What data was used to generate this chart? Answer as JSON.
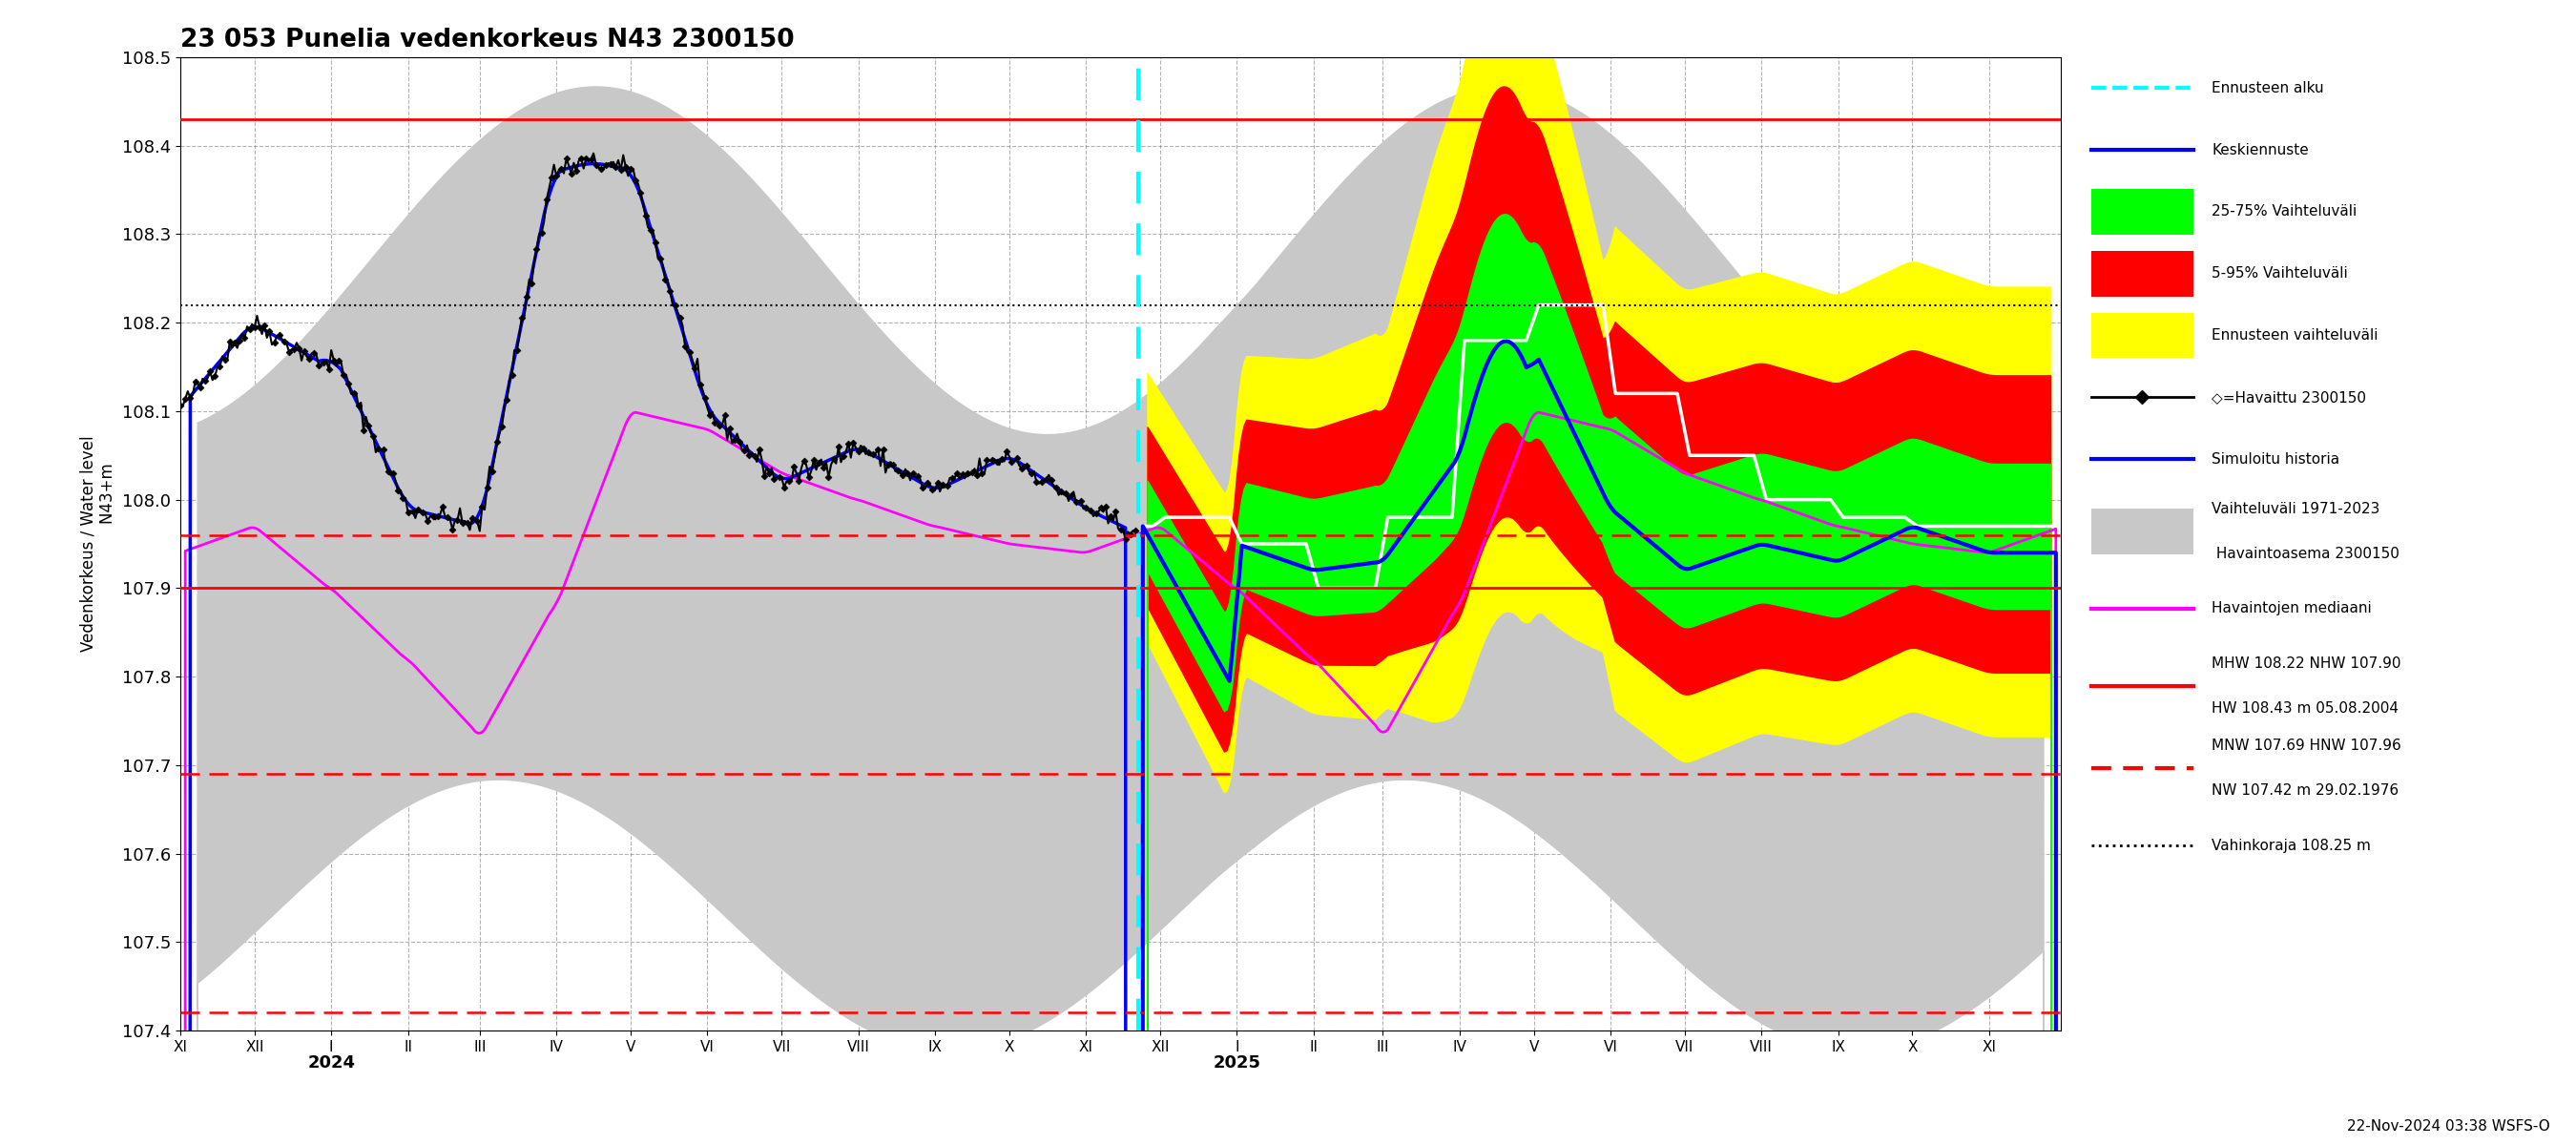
{
  "title": "23 053 Punelia vedenkorkeus N43 2300150",
  "ylabel_combined": "Vedenkorkeus / Water level\n                    N43+m",
  "timestamp_label": "22-Nov-2024 03:38 WSFS-O",
  "ylim": [
    107.4,
    108.5
  ],
  "yticks": [
    107.4,
    107.5,
    107.6,
    107.7,
    107.8,
    107.9,
    108.0,
    108.1,
    108.2,
    108.3,
    108.4,
    108.5
  ],
  "background_color": "white",
  "hline_red_solid_hw": 108.43,
  "hline_red_solid_nhw": 107.9,
  "hline_red_dashed_hnw": 107.96,
  "hline_red_dashed_mnw": 107.69,
  "hline_red_dashed_nw": 107.42,
  "hline_black_dotted_mhw": 108.22,
  "hline_black_dotted_vah": 108.25
}
